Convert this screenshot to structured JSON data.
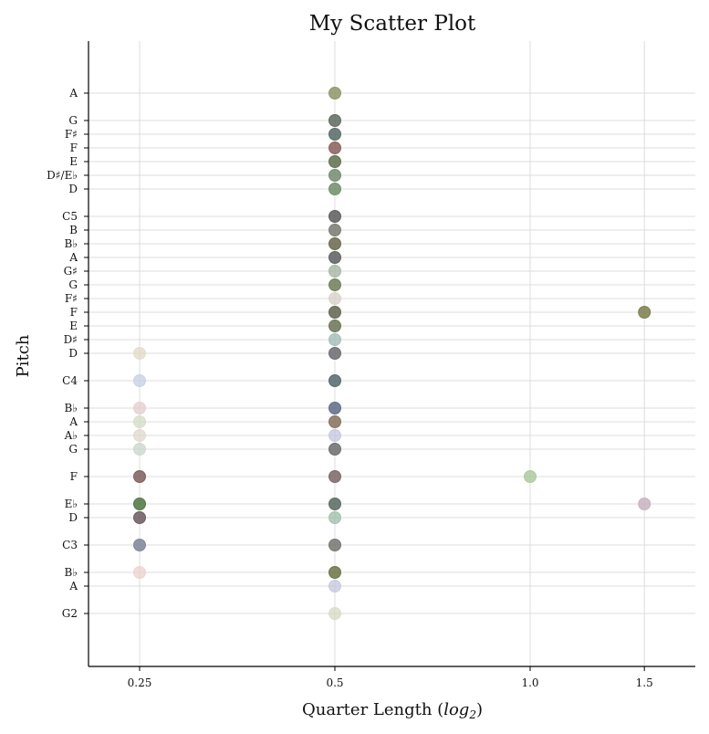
{
  "chart_data": {
    "type": "scatter",
    "title": "My Scatter Plot",
    "xlabel_main": "Quarter Length (",
    "xlabel_log": "log",
    "xlabel_sub": "2",
    "xlabel_end": ")",
    "ylabel": "Pitch",
    "x_scale": "log2",
    "x_ticks": [
      {
        "value": 0.25,
        "label": "0.25"
      },
      {
        "value": 0.5,
        "label": "0.5"
      },
      {
        "value": 1.0,
        "label": "1.0"
      },
      {
        "value": 1.5,
        "label": "1.5"
      }
    ],
    "xlim": [
      0.2,
      1.8
    ],
    "ylim": [
      41,
      83
    ],
    "grid": "both",
    "y_ticks": [
      {
        "midi": 43,
        "label": "G2"
      },
      {
        "midi": 45,
        "label": "A"
      },
      {
        "midi": 46,
        "label": "B♭"
      },
      {
        "midi": 48,
        "label": "C3"
      },
      {
        "midi": 50,
        "label": "D"
      },
      {
        "midi": 51,
        "label": "E♭"
      },
      {
        "midi": 53,
        "label": "F"
      },
      {
        "midi": 55,
        "label": "G"
      },
      {
        "midi": 56,
        "label": "A♭"
      },
      {
        "midi": 57,
        "label": "A"
      },
      {
        "midi": 58,
        "label": "B♭"
      },
      {
        "midi": 60,
        "label": "C4"
      },
      {
        "midi": 62,
        "label": "D"
      },
      {
        "midi": 63,
        "label": "D♯"
      },
      {
        "midi": 64,
        "label": "E"
      },
      {
        "midi": 65,
        "label": "F"
      },
      {
        "midi": 66,
        "label": "F♯"
      },
      {
        "midi": 67,
        "label": "G"
      },
      {
        "midi": 68,
        "label": "G♯"
      },
      {
        "midi": 69,
        "label": "A"
      },
      {
        "midi": 70,
        "label": "B♭"
      },
      {
        "midi": 71,
        "label": "B"
      },
      {
        "midi": 72,
        "label": "C5"
      },
      {
        "midi": 74,
        "label": "D"
      },
      {
        "midi": 75,
        "label": "D♯/E♭"
      },
      {
        "midi": 76,
        "label": "E"
      },
      {
        "midi": 77,
        "label": "F"
      },
      {
        "midi": 78,
        "label": "F♯"
      },
      {
        "midi": 79,
        "label": "G"
      },
      {
        "midi": 81,
        "label": "A"
      }
    ],
    "points": [
      {
        "x": 0.5,
        "y": 81,
        "color": "#8c9668",
        "alpha": 0.85
      },
      {
        "x": 0.5,
        "y": 79,
        "color": "#5e6a5e",
        "alpha": 0.85
      },
      {
        "x": 0.5,
        "y": 78,
        "color": "#566a66",
        "alpha": 0.85
      },
      {
        "x": 0.5,
        "y": 77,
        "color": "#8a5f58",
        "alpha": 0.85
      },
      {
        "x": 0.5,
        "y": 76,
        "color": "#5e6e4c",
        "alpha": 0.85
      },
      {
        "x": 0.5,
        "y": 75,
        "color": "#748c6c",
        "alpha": 0.85
      },
      {
        "x": 0.5,
        "y": 74,
        "color": "#6e8e6a",
        "alpha": 0.85
      },
      {
        "x": 0.5,
        "y": 72,
        "color": "#5c5c5c",
        "alpha": 0.85
      },
      {
        "x": 0.5,
        "y": 71,
        "color": "#767a70",
        "alpha": 0.85
      },
      {
        "x": 0.5,
        "y": 70,
        "color": "#68684a",
        "alpha": 0.85
      },
      {
        "x": 0.5,
        "y": 69,
        "color": "#5c5e60",
        "alpha": 0.85
      },
      {
        "x": 0.5,
        "y": 68,
        "color": "#9aac98",
        "alpha": 0.7
      },
      {
        "x": 0.5,
        "y": 67,
        "color": "#6e7e58",
        "alpha": 0.85
      },
      {
        "x": 0.5,
        "y": 66,
        "color": "#d6d0c6",
        "alpha": 0.75
      },
      {
        "x": 0.5,
        "y": 65,
        "color": "#60644e",
        "alpha": 0.85
      },
      {
        "x": 0.5,
        "y": 64,
        "color": "#6a7454",
        "alpha": 0.85
      },
      {
        "x": 0.5,
        "y": 63,
        "color": "#9cb8b2",
        "alpha": 0.75
      },
      {
        "x": 0.5,
        "y": 62,
        "color": "#6a6a6e",
        "alpha": 0.85
      },
      {
        "x": 0.5,
        "y": 60,
        "color": "#52686c",
        "alpha": 0.85
      },
      {
        "x": 0.5,
        "y": 58,
        "color": "#5c6c86",
        "alpha": 0.85
      },
      {
        "x": 0.5,
        "y": 57,
        "color": "#86705a",
        "alpha": 0.85
      },
      {
        "x": 0.5,
        "y": 56,
        "color": "#c0c2da",
        "alpha": 0.7
      },
      {
        "x": 0.5,
        "y": 55,
        "color": "#6c6c6c",
        "alpha": 0.85
      },
      {
        "x": 0.5,
        "y": 53,
        "color": "#7a6666",
        "alpha": 0.85
      },
      {
        "x": 0.5,
        "y": 51,
        "color": "#566a60",
        "alpha": 0.85
      },
      {
        "x": 0.5,
        "y": 50,
        "color": "#9cbca6",
        "alpha": 0.75
      },
      {
        "x": 0.5,
        "y": 48,
        "color": "#727670",
        "alpha": 0.85
      },
      {
        "x": 0.5,
        "y": 46,
        "color": "#6a7446",
        "alpha": 0.85
      },
      {
        "x": 0.5,
        "y": 45,
        "color": "#c2c2de",
        "alpha": 0.7
      },
      {
        "x": 0.5,
        "y": 43,
        "color": "#d6dac2",
        "alpha": 0.75
      },
      {
        "x": 0.25,
        "y": 62,
        "color": "#e2dac6",
        "alpha": 0.75
      },
      {
        "x": 0.25,
        "y": 60,
        "color": "#c4d0e0",
        "alpha": 0.75
      },
      {
        "x": 0.25,
        "y": 58,
        "color": "#e6cccc",
        "alpha": 0.75
      },
      {
        "x": 0.25,
        "y": 57,
        "color": "#d4dcc4",
        "alpha": 0.75
      },
      {
        "x": 0.25,
        "y": 56,
        "color": "#e2d8cc",
        "alpha": 0.75
      },
      {
        "x": 0.25,
        "y": 55,
        "color": "#c8d6cc",
        "alpha": 0.75
      },
      {
        "x": 0.25,
        "y": 53,
        "color": "#7c5e5c",
        "alpha": 0.85
      },
      {
        "x": 0.25,
        "y": 51,
        "color": "#4e7442",
        "alpha": 0.85
      },
      {
        "x": 0.25,
        "y": 50,
        "color": "#6a5a60",
        "alpha": 0.85
      },
      {
        "x": 0.25,
        "y": 48,
        "color": "#7e8498",
        "alpha": 0.85
      },
      {
        "x": 0.25,
        "y": 46,
        "color": "#ecd0cc",
        "alpha": 0.75
      },
      {
        "x": 1.0,
        "y": 53,
        "color": "#a8c89a",
        "alpha": 0.8
      },
      {
        "x": 1.5,
        "y": 65,
        "color": "#7c7c4c",
        "alpha": 0.85
      },
      {
        "x": 1.5,
        "y": 51,
        "color": "#c6aebe",
        "alpha": 0.8
      }
    ]
  }
}
